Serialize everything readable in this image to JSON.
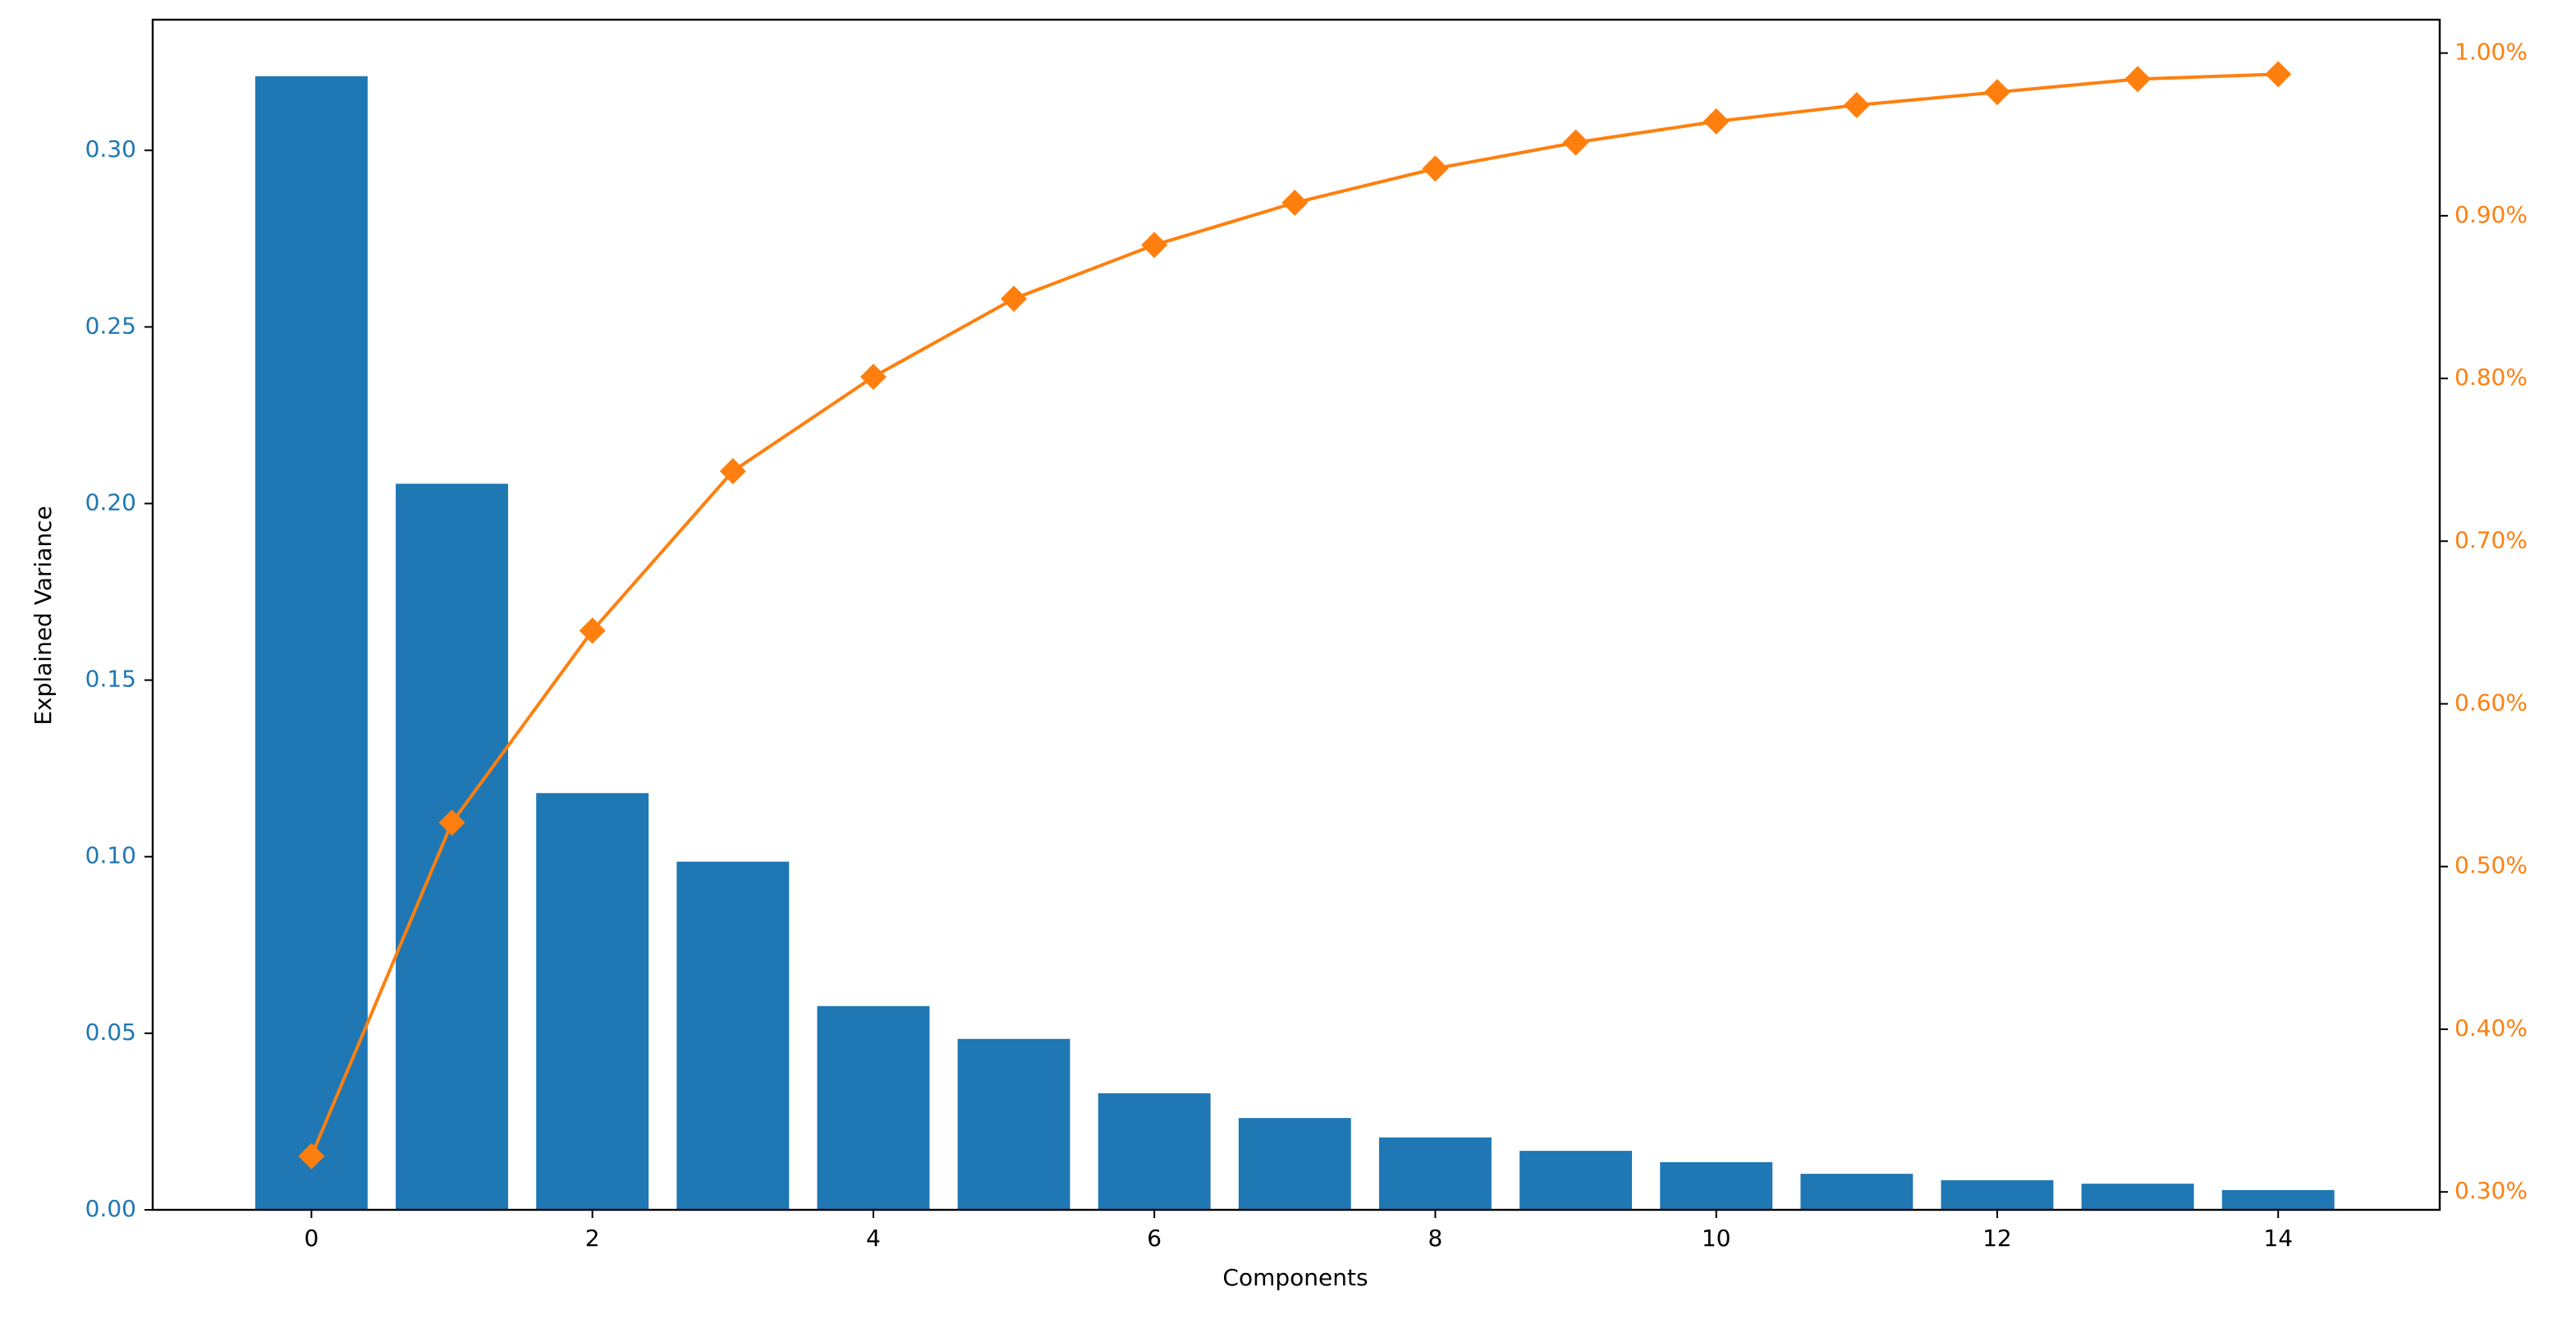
{
  "chart_data": {
    "type": "bar-line",
    "x_label": "Components",
    "y_label": "Explained Variance",
    "x": [
      0,
      1,
      2,
      3,
      4,
      5,
      6,
      7,
      8,
      9,
      10,
      11,
      12,
      13,
      14
    ],
    "series": [
      {
        "type": "bar",
        "color": "#1f77b4",
        "values": [
          0.321,
          0.2056,
          0.118,
          0.0986,
          0.0577,
          0.0484,
          0.033,
          0.026,
          0.0205,
          0.0167,
          0.0135,
          0.0102,
          0.0084,
          0.0074,
          0.0056
        ]
      },
      {
        "type": "line",
        "axis": "y2",
        "color": "#ff7f0e",
        "marker": "diamond",
        "values": [
          0.322,
          0.527,
          0.645,
          0.743,
          0.801,
          0.849,
          0.882,
          0.908,
          0.929,
          0.945,
          0.958,
          0.968,
          0.976,
          0.984,
          0.987
        ]
      }
    ],
    "xlim": [
      -1.13,
      15.15
    ],
    "xticks": [
      0,
      2,
      4,
      6,
      8,
      10,
      12,
      14
    ],
    "ylim": [
      0,
      0.337
    ],
    "yticks": [
      {
        "value": 0,
        "label": "0.00"
      },
      {
        "value": 0.05,
        "label": "0.05"
      },
      {
        "value": 0.1,
        "label": "0.10"
      },
      {
        "value": 0.15,
        "label": "0.15"
      },
      {
        "value": 0.2,
        "label": "0.20"
      },
      {
        "value": 0.25,
        "label": "0.25"
      },
      {
        "value": 0.3,
        "label": "0.30"
      }
    ],
    "y2lim": [
      0.289,
      1.0205
    ],
    "y2ticks": [
      {
        "value": 0.3,
        "label": "0.30%"
      },
      {
        "value": 0.4,
        "label": "0.40%"
      },
      {
        "value": 0.5,
        "label": "0.50%"
      },
      {
        "value": 0.6,
        "label": "0.60%"
      },
      {
        "value": 0.7,
        "label": "0.70%"
      },
      {
        "value": 0.8,
        "label": "0.80%"
      },
      {
        "value": 0.9,
        "label": "0.90%"
      },
      {
        "value": 1.0,
        "label": "1.00%"
      }
    ],
    "grid": false
  }
}
